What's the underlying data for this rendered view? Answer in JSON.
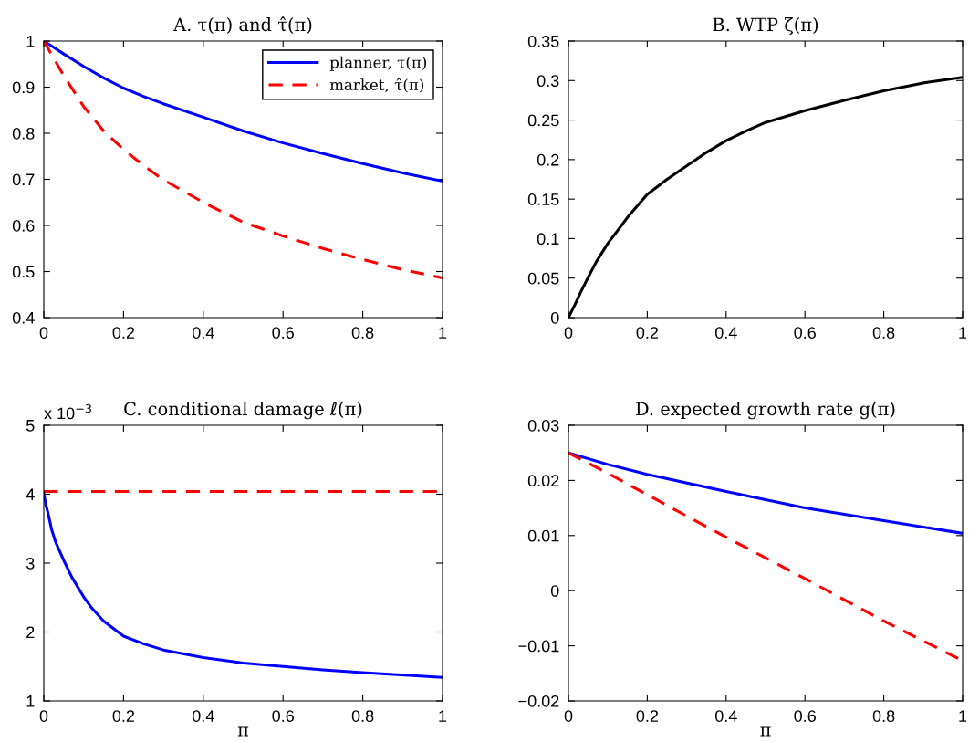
{
  "chart_data": [
    {
      "type": "line",
      "title": "A. τ(π) and τ̂(π)",
      "xlim": [
        0,
        1
      ],
      "xticks": [
        0,
        0.2,
        0.4,
        0.6,
        0.8,
        1
      ],
      "ylim": [
        0.4,
        1
      ],
      "yticks": [
        0.4,
        0.5,
        0.6,
        0.7,
        0.8,
        0.9,
        1
      ],
      "grid": false,
      "legend": "top right",
      "x": [
        0,
        0.02,
        0.05,
        0.1,
        0.15,
        0.2,
        0.25,
        0.3,
        0.4,
        0.5,
        0.6,
        0.7,
        0.8,
        0.9,
        1
      ],
      "series": [
        {
          "name": "planner, τ(π)",
          "color": "#0000ff",
          "line_style": "solid",
          "values": [
            1,
            0.989,
            0.972,
            0.945,
            0.92,
            0.898,
            0.88,
            0.864,
            0.835,
            0.805,
            0.779,
            0.756,
            0.734,
            0.714,
            0.696
          ]
        },
        {
          "name": "market, τ̂(π)",
          "color": "#ff0000",
          "line_style": "dashed",
          "values": [
            1,
            0.97,
            0.925,
            0.858,
            0.805,
            0.765,
            0.73,
            0.699,
            0.65,
            0.607,
            0.577,
            0.55,
            0.526,
            0.504,
            0.486
          ]
        }
      ]
    },
    {
      "type": "line",
      "title": "B. WTP ζ(π)",
      "xlim": [
        0,
        1
      ],
      "xticks": [
        0,
        0.2,
        0.4,
        0.6,
        0.8,
        1
      ],
      "ylim": [
        0,
        0.35
      ],
      "yticks": [
        0,
        0.05,
        0.1,
        0.15,
        0.2,
        0.25,
        0.3,
        0.35
      ],
      "grid": false,
      "x": [
        0,
        0.01,
        0.02,
        0.03,
        0.05,
        0.07,
        0.1,
        0.12,
        0.15,
        0.2,
        0.25,
        0.3,
        0.35,
        0.4,
        0.45,
        0.5,
        0.6,
        0.7,
        0.8,
        0.9,
        1
      ],
      "series": [
        {
          "color": "#000000",
          "line_style": "solid",
          "values": [
            0,
            0.01,
            0.02,
            0.031,
            0.051,
            0.07,
            0.094,
            0.107,
            0.127,
            0.156,
            0.175,
            0.192,
            0.209,
            0.224,
            0.236,
            0.247,
            0.262,
            0.275,
            0.287,
            0.297,
            0.304
          ]
        }
      ]
    },
    {
      "type": "line",
      "title": "C. conditional damage ℓ(π)",
      "xlabel": "π",
      "annotations": [
        "x 10$^{−3}$"
      ],
      "xlim": [
        0,
        1
      ],
      "xticks": [
        0,
        0.2,
        0.4,
        0.6,
        0.8,
        1
      ],
      "ylim": [
        1,
        5
      ],
      "yticks": [
        1,
        2,
        3,
        4,
        5
      ],
      "grid": false,
      "x": [
        0,
        0.005,
        0.01,
        0.02,
        0.03,
        0.05,
        0.07,
        0.1,
        0.12,
        0.15,
        0.2,
        0.25,
        0.3,
        0.4,
        0.5,
        0.6,
        0.7,
        0.8,
        1
      ],
      "series": [
        {
          "color": "#ff0000",
          "line_style": "dashed",
          "values": [
            4.04,
            4.04,
            4.04,
            4.04,
            4.04,
            4.04,
            4.04,
            4.04,
            4.04,
            4.04,
            4.04,
            4.04,
            4.04,
            4.04,
            4.04,
            4.04,
            4.04,
            4.04,
            4.04
          ]
        },
        {
          "color": "#0000ff",
          "line_style": "solid",
          "values": [
            4.01,
            3.85,
            3.74,
            3.48,
            3.3,
            3.04,
            2.8,
            2.51,
            2.35,
            2.16,
            1.94,
            1.83,
            1.74,
            1.63,
            1.55,
            1.5,
            1.45,
            1.41,
            1.34
          ]
        }
      ]
    },
    {
      "type": "line",
      "title": "D. expected growth rate g(π)",
      "xlabel": "π",
      "xlim": [
        0,
        1
      ],
      "xticks": [
        0,
        0.2,
        0.4,
        0.6,
        0.8,
        1
      ],
      "ylim": [
        -0.02,
        0.03
      ],
      "yticks": [
        {
          "value": -0.02,
          "label": "−0.02"
        },
        {
          "value": -0.01,
          "label": "−0.01"
        },
        0,
        0.01,
        0.02,
        0.03
      ],
      "grid": false,
      "x": [
        0,
        0.1,
        0.2,
        0.4,
        0.6,
        0.8,
        1
      ],
      "series": [
        {
          "color": "#0000ff",
          "line_style": "solid",
          "values": [
            0.025,
            0.0229,
            0.0211,
            0.018,
            0.015,
            0.0127,
            0.0104
          ]
        },
        {
          "color": "#ff0000",
          "line_style": "dashed",
          "values": [
            0.025,
            0.0213,
            0.0174,
            0.0097,
            0.0022,
            -0.0055,
            -0.0127
          ]
        }
      ]
    }
  ]
}
